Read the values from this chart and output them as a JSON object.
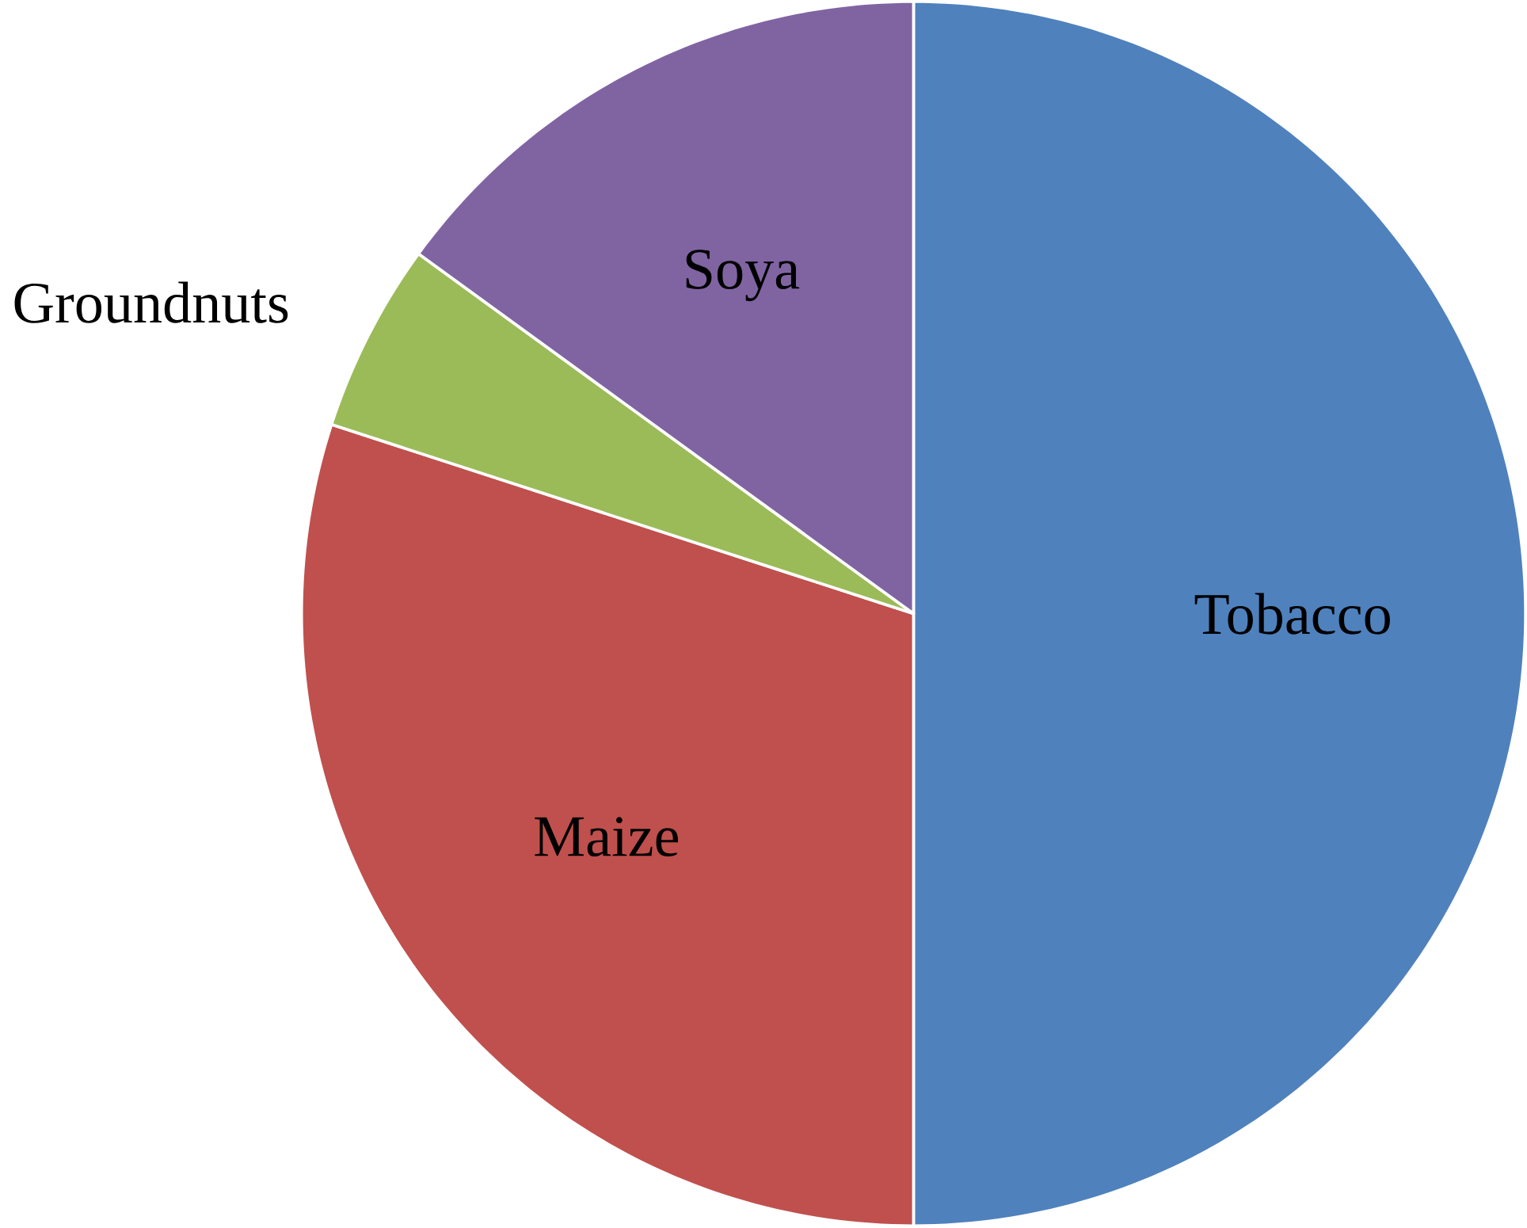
{
  "chart_data": {
    "type": "pie",
    "categories": [
      "Tobacco",
      "Maize",
      "Groundnuts",
      "Soya"
    ],
    "values": [
      50,
      30,
      5,
      15
    ],
    "colors": [
      "#4f81bd",
      "#c0504d",
      "#9bbb59",
      "#8064a2"
    ],
    "legend": false
  }
}
